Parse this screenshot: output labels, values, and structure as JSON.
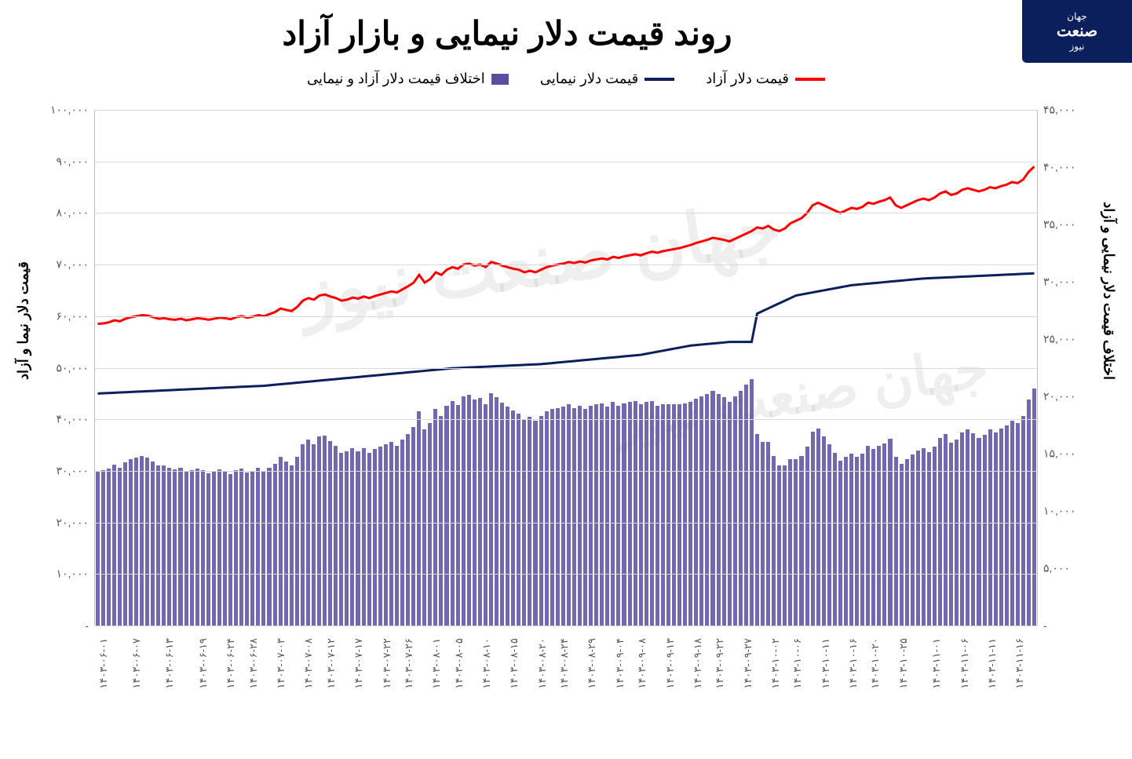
{
  "logo_top": "جهان",
  "logo_main": "صنعت",
  "logo_sub": "نیوز",
  "title": "روند قیمت دلار نیمایی و بازار آزاد",
  "legend": {
    "free": {
      "label": "قیمت دلار آزاد",
      "color": "#ff0000"
    },
    "nima": {
      "label": "قیمت دلار نیمایی",
      "color": "#0a1f5c"
    },
    "diff": {
      "label": "اختلاف قیمت دلار آزاد و نیمایی",
      "color": "#5b4ea0"
    }
  },
  "left_axis": {
    "label": "قیمت دلار نیما و آزاد",
    "min": 0,
    "max": 100000,
    "step": 10000,
    "ticks": [
      "-",
      "۱۰,۰۰۰",
      "۲۰,۰۰۰",
      "۳۰,۰۰۰",
      "۴۰,۰۰۰",
      "۵۰,۰۰۰",
      "۶۰,۰۰۰",
      "۷۰,۰۰۰",
      "۸۰,۰۰۰",
      "۹۰,۰۰۰",
      "۱۰۰,۰۰۰"
    ]
  },
  "right_axis": {
    "label": "اختلاف قیمت دلار نیمایی و آزاد",
    "min": 0,
    "max": 45000,
    "step": 5000,
    "ticks": [
      "-",
      "۵,۰۰۰",
      "۱۰,۰۰۰",
      "۱۵,۰۰۰",
      "۲۰,۰۰۰",
      "۲۵,۰۰۰",
      "۳۰,۰۰۰",
      "۳۵,۰۰۰",
      "۴۰,۰۰۰",
      "۴۵,۰۰۰"
    ]
  },
  "styling": {
    "background": "#ffffff",
    "grid_color": "#d9d9d9",
    "bar_color": "#5b4ea0",
    "bar_opacity": 0.85,
    "line_width": 3,
    "title_fontsize": 42,
    "legend_fontsize": 18,
    "tick_fontsize": 14,
    "xlabel_fontsize": 13
  },
  "watermark": "جهان صنعت نیوز",
  "series": [
    {
      "d": "۱۴۰۳-۰۶-۰۱",
      "free": 58500,
      "nima": 45000,
      "diff": 13500,
      "lab": true
    },
    {
      "d": "۱۴۰۳-۰۶-۰۲",
      "free": 58600,
      "nima": 45050,
      "diff": 13550
    },
    {
      "d": "۱۴۰۳-۰۶-۰۳",
      "free": 58800,
      "nima": 45100,
      "diff": 13700
    },
    {
      "d": "۱۴۰۳-۰۶-۰۴",
      "free": 59200,
      "nima": 45150,
      "diff": 14050
    },
    {
      "d": "۱۴۰۳-۰۶-۰۵",
      "free": 59000,
      "nima": 45200,
      "diff": 13800
    },
    {
      "d": "۱۴۰۳-۰۶-۰۶",
      "free": 59500,
      "nima": 45250,
      "diff": 14250
    },
    {
      "d": "۱۴۰۳-۰۶-۰۷",
      "free": 59800,
      "nima": 45300,
      "diff": 14500,
      "lab": true
    },
    {
      "d": "۱۴۰۳-۰۶-۰۸",
      "free": 60000,
      "nima": 45350,
      "diff": 14650
    },
    {
      "d": "۱۴۰۳-۰۶-۰۹",
      "free": 60200,
      "nima": 45400,
      "diff": 14800
    },
    {
      "d": "۱۴۰۳-۰۶-۱۰",
      "free": 60100,
      "nima": 45450,
      "diff": 14650
    },
    {
      "d": "۱۴۰۳-۰۶-۱۱",
      "free": 59800,
      "nima": 45500,
      "diff": 14300
    },
    {
      "d": "۱۴۰۳-۰۶-۱۲",
      "free": 59500,
      "nima": 45550,
      "diff": 13950
    },
    {
      "d": "۱۴۰۳-۰۶-۱۳",
      "free": 59600,
      "nima": 45600,
      "diff": 14000,
      "lab": true
    },
    {
      "d": "۱۴۰۳-۰۶-۱۴",
      "free": 59400,
      "nima": 45650,
      "diff": 13750
    },
    {
      "d": "۱۴۰۳-۰۶-۱۵",
      "free": 59300,
      "nima": 45700,
      "diff": 13600
    },
    {
      "d": "۱۴۰۳-۰۶-۱۶",
      "free": 59500,
      "nima": 45750,
      "diff": 13750
    },
    {
      "d": "۱۴۰۳-۰۶-۱۷",
      "free": 59200,
      "nima": 45800,
      "diff": 13400
    },
    {
      "d": "۱۴۰۳-۰۶-۱۸",
      "free": 59400,
      "nima": 45850,
      "diff": 13550
    },
    {
      "d": "۱۴۰۳-۰۶-۱۹",
      "free": 59600,
      "nima": 45900,
      "diff": 13700,
      "lab": true
    },
    {
      "d": "۱۴۰۳-۰۶-۲۰",
      "free": 59500,
      "nima": 45950,
      "diff": 13550
    },
    {
      "d": "۱۴۰۳-۰۶-۲۱",
      "free": 59300,
      "nima": 46000,
      "diff": 13300
    },
    {
      "d": "۱۴۰۳-۰۶-۲۲",
      "free": 59500,
      "nima": 46050,
      "diff": 13450
    },
    {
      "d": "۱۴۰۳-۰۶-۲۳",
      "free": 59700,
      "nima": 46100,
      "diff": 13600
    },
    {
      "d": "۱۴۰۳-۰۶-۲۴",
      "free": 59600,
      "nima": 46150,
      "diff": 13450,
      "lab": true
    },
    {
      "d": "۱۴۰۳-۰۶-۲۵",
      "free": 59400,
      "nima": 46200,
      "diff": 13200
    },
    {
      "d": "۱۴۰۳-۰۶-۲۶",
      "free": 59800,
      "nima": 46250,
      "diff": 13550
    },
    {
      "d": "۱۴۰۳-۰۶-۲۷",
      "free": 60000,
      "nima": 46300,
      "diff": 13700
    },
    {
      "d": "۱۴۰۳-۰۶-۲۸",
      "free": 59700,
      "nima": 46350,
      "diff": 13350,
      "lab": true
    },
    {
      "d": "۱۴۰۳-۰۶-۲۹",
      "free": 59900,
      "nima": 46400,
      "diff": 13500
    },
    {
      "d": "۱۴۰۳-۰۶-۳۰",
      "free": 60200,
      "nima": 46450,
      "diff": 13750
    },
    {
      "d": "۱۴۰۳-۰۷-۰۱",
      "free": 60000,
      "nima": 46500,
      "diff": 13500
    },
    {
      "d": "۱۴۰۳-۰۷-۰۲",
      "free": 60400,
      "nima": 46600,
      "diff": 13800
    },
    {
      "d": "۱۴۰۳-۰۷-۰۳",
      "free": 60800,
      "nima": 46700,
      "diff": 14100,
      "lab": true
    },
    {
      "d": "۱۴۰۳-۰۷-۰۴",
      "free": 61500,
      "nima": 46800,
      "diff": 14700
    },
    {
      "d": "۱۴۰۳-۰۷-۰۵",
      "free": 61200,
      "nima": 46900,
      "diff": 14300
    },
    {
      "d": "۱۴۰۳-۰۷-۰۶",
      "free": 61000,
      "nima": 47000,
      "diff": 14000
    },
    {
      "d": "۱۴۰۳-۰۷-۰۷",
      "free": 61800,
      "nima": 47100,
      "diff": 14700
    },
    {
      "d": "۱۴۰۳-۰۷-۰۸",
      "free": 63000,
      "nima": 47200,
      "diff": 15800,
      "lab": true
    },
    {
      "d": "۱۴۰۳-۰۷-۰۹",
      "free": 63500,
      "nima": 47300,
      "diff": 16200
    },
    {
      "d": "۱۴۰۳-۰۷-۱۰",
      "free": 63200,
      "nima": 47400,
      "diff": 15800
    },
    {
      "d": "۱۴۰۳-۰۷-۱۱",
      "free": 64000,
      "nima": 47500,
      "diff": 16500
    },
    {
      "d": "۱۴۰۳-۰۷-۱۲",
      "free": 64200,
      "nima": 47600,
      "diff": 16600,
      "lab": true
    },
    {
      "d": "۱۴۰۳-۰۷-۱۳",
      "free": 63800,
      "nima": 47700,
      "diff": 16100
    },
    {
      "d": "۱۴۰۳-۰۷-۱۴",
      "free": 63500,
      "nima": 47800,
      "diff": 15700
    },
    {
      "d": "۱۴۰۳-۰۷-۱۵",
      "free": 63000,
      "nima": 47900,
      "diff": 15100
    },
    {
      "d": "۱۴۰۳-۰۷-۱۶",
      "free": 63200,
      "nima": 48000,
      "diff": 15200
    },
    {
      "d": "۱۴۰۳-۰۷-۱۷",
      "free": 63600,
      "nima": 48100,
      "diff": 15500,
      "lab": true
    },
    {
      "d": "۱۴۰۳-۰۷-۱۸",
      "free": 63400,
      "nima": 48200,
      "diff": 15200
    },
    {
      "d": "۱۴۰۳-۰۷-۱۹",
      "free": 63800,
      "nima": 48300,
      "diff": 15500
    },
    {
      "d": "۱۴۰۳-۰۷-۲۰",
      "free": 63500,
      "nima": 48400,
      "diff": 15100
    },
    {
      "d": "۱۴۰۳-۰۷-۲۱",
      "free": 63900,
      "nima": 48500,
      "diff": 15400
    },
    {
      "d": "۱۴۰۳-۰۷-۲۲",
      "free": 64200,
      "nima": 48600,
      "diff": 15600,
      "lab": true
    },
    {
      "d": "۱۴۰۳-۰۷-۲۳",
      "free": 64500,
      "nima": 48700,
      "diff": 15800
    },
    {
      "d": "۱۴۰۳-۰۷-۲۴",
      "free": 64800,
      "nima": 48800,
      "diff": 16000
    },
    {
      "d": "۱۴۰۳-۰۷-۲۵",
      "free": 64600,
      "nima": 48900,
      "diff": 15700
    },
    {
      "d": "۱۴۰۳-۰۷-۲۶",
      "free": 65200,
      "nima": 49000,
      "diff": 16200,
      "lab": true
    },
    {
      "d": "۱۴۰۳-۰۷-۲۷",
      "free": 65800,
      "nima": 49100,
      "diff": 16700
    },
    {
      "d": "۱۴۰۳-۰۷-۲۸",
      "free": 66500,
      "nima": 49200,
      "diff": 17300
    },
    {
      "d": "۱۴۰۳-۰۷-۲۹",
      "free": 68000,
      "nima": 49300,
      "diff": 18700
    },
    {
      "d": "۱۴۰۳-۰۷-۳۰",
      "free": 66500,
      "nima": 49400,
      "diff": 17100
    },
    {
      "d": "۱۴۰۳-۰۸-۰۱",
      "free": 67200,
      "nima": 49500,
      "diff": 17700,
      "lab": true
    },
    {
      "d": "۱۴۰۳-۰۸-۰۲",
      "free": 68500,
      "nima": 49600,
      "diff": 18900
    },
    {
      "d": "۱۴۰۳-۰۸-۰۳",
      "free": 68000,
      "nima": 49700,
      "diff": 18300
    },
    {
      "d": "۱۴۰۳-۰۸-۰۴",
      "free": 69000,
      "nima": 49800,
      "diff": 19200
    },
    {
      "d": "۱۴۰۳-۰۸-۰۵",
      "free": 69500,
      "nima": 49900,
      "diff": 19600,
      "lab": true
    },
    {
      "d": "۱۴۰۳-۰۸-۰۶",
      "free": 69200,
      "nima": 49950,
      "diff": 19250
    },
    {
      "d": "۱۴۰۳-۰۸-۰۷",
      "free": 70000,
      "nima": 50000,
      "diff": 20000
    },
    {
      "d": "۱۴۰۳-۰۸-۰۸",
      "free": 70200,
      "nima": 50050,
      "diff": 20150
    },
    {
      "d": "۱۴۰۳-۰۸-۰۹",
      "free": 69800,
      "nima": 50100,
      "diff": 19700
    },
    {
      "d": "۱۴۰۳-۰۸-۱۰",
      "free": 70000,
      "nima": 50150,
      "diff": 19850,
      "lab": true
    },
    {
      "d": "۱۴۰۳-۰۸-۱۱",
      "free": 69500,
      "nima": 50200,
      "diff": 19300
    },
    {
      "d": "۱۴۰۳-۰۸-۱۲",
      "free": 70500,
      "nima": 50250,
      "diff": 20250
    },
    {
      "d": "۱۴۰۳-۰۸-۱۳",
      "free": 70200,
      "nima": 50300,
      "diff": 19900
    },
    {
      "d": "۱۴۰۳-۰۸-۱۴",
      "free": 69800,
      "nima": 50350,
      "diff": 19450
    },
    {
      "d": "۱۴۰۳-۰۸-۱۵",
      "free": 69500,
      "nima": 50400,
      "diff": 19100,
      "lab": true
    },
    {
      "d": "۱۴۰۳-۰۸-۱۶",
      "free": 69200,
      "nima": 50450,
      "diff": 18750
    },
    {
      "d": "۱۴۰۳-۰۸-۱۷",
      "free": 69000,
      "nima": 50500,
      "diff": 18500
    },
    {
      "d": "۱۴۰۳-۰۸-۱۸",
      "free": 68500,
      "nima": 50550,
      "diff": 17950
    },
    {
      "d": "۱۴۰۳-۰۸-۱۹",
      "free": 68800,
      "nima": 50600,
      "diff": 18200
    },
    {
      "d": "۱۴۰۳-۰۸-۲۰",
      "free": 68500,
      "nima": 50650,
      "diff": 17850,
      "lab": true
    },
    {
      "d": "۱۴۰۳-۰۸-۲۱",
      "free": 69000,
      "nima": 50700,
      "diff": 18300
    },
    {
      "d": "۱۴۰۳-۰۸-۲۲",
      "free": 69500,
      "nima": 50800,
      "diff": 18700
    },
    {
      "d": "۱۴۰۳-۰۸-۲۳",
      "free": 69800,
      "nima": 50900,
      "diff": 18900
    },
    {
      "d": "۱۴۰۳-۰۸-۲۴",
      "free": 70000,
      "nima": 51000,
      "diff": 19000,
      "lab": true
    },
    {
      "d": "۱۴۰۳-۰۸-۲۵",
      "free": 70200,
      "nima": 51100,
      "diff": 19100
    },
    {
      "d": "۱۴۰۳-۰۸-۲۶",
      "free": 70500,
      "nima": 51200,
      "diff": 19300
    },
    {
      "d": "۱۴۰۳-۰۸-۲۷",
      "free": 70300,
      "nima": 51300,
      "diff": 19000
    },
    {
      "d": "۱۴۰۳-۰۸-۲۸",
      "free": 70600,
      "nima": 51400,
      "diff": 19200
    },
    {
      "d": "۱۴۰۳-۰۸-۲۹",
      "free": 70400,
      "nima": 51500,
      "diff": 18900,
      "lab": true
    },
    {
      "d": "۱۴۰۳-۰۸-۳۰",
      "free": 70800,
      "nima": 51600,
      "diff": 19200
    },
    {
      "d": "۱۴۰۳-۰۹-۰۱",
      "free": 71000,
      "nima": 51700,
      "diff": 19300
    },
    {
      "d": "۱۴۰۳-۰۹-۰۲",
      "free": 71200,
      "nima": 51800,
      "diff": 19400
    },
    {
      "d": "۱۴۰۳-۰۹-۰۳",
      "free": 71000,
      "nima": 51900,
      "diff": 19100
    },
    {
      "d": "۱۴۰۳-۰۹-۰۴",
      "free": 71500,
      "nima": 52000,
      "diff": 19500,
      "lab": true
    },
    {
      "d": "۱۴۰۳-۰۹-۰۵",
      "free": 71300,
      "nima": 52100,
      "diff": 19200
    },
    {
      "d": "۱۴۰۳-۰۹-۰۶",
      "free": 71600,
      "nima": 52200,
      "diff": 19400
    },
    {
      "d": "۱۴۰۳-۰۹-۰۷",
      "free": 71800,
      "nima": 52300,
      "diff": 19500
    },
    {
      "d": "۱۴۰۳-۰۹-۰۸",
      "free": 72000,
      "nima": 52400,
      "diff": 19600,
      "lab": true
    },
    {
      "d": "۱۴۰۳-۰۹-۰۹",
      "free": 71800,
      "nima": 52500,
      "diff": 19300
    },
    {
      "d": "۱۴۰۳-۰۹-۱۰",
      "free": 72200,
      "nima": 52700,
      "diff": 19500
    },
    {
      "d": "۱۴۰۳-۰۹-۱۱",
      "free": 72500,
      "nima": 52900,
      "diff": 19600
    },
    {
      "d": "۱۴۰۳-۰۹-۱۲",
      "free": 72300,
      "nima": 53100,
      "diff": 19200
    },
    {
      "d": "۱۴۰۳-۰۹-۱۳",
      "free": 72600,
      "nima": 53300,
      "diff": 19300,
      "lab": true
    },
    {
      "d": "۱۴۰۳-۰۹-۱۴",
      "free": 72800,
      "nima": 53500,
      "diff": 19300
    },
    {
      "d": "۱۴۰۳-۰۹-۱۵",
      "free": 73000,
      "nima": 53700,
      "diff": 19300
    },
    {
      "d": "۱۴۰۳-۰۹-۱۶",
      "free": 73200,
      "nima": 53900,
      "diff": 19300
    },
    {
      "d": "۱۴۰۳-۰۹-۱۷",
      "free": 73500,
      "nima": 54100,
      "diff": 19400
    },
    {
      "d": "۱۴۰۳-۰۹-۱۸",
      "free": 73800,
      "nima": 54300,
      "diff": 19500,
      "lab": true
    },
    {
      "d": "۱۴۰۳-۰۹-۱۹",
      "free": 74200,
      "nima": 54400,
      "diff": 19800
    },
    {
      "d": "۱۴۰۳-۰۹-۲۰",
      "free": 74500,
      "nima": 54500,
      "diff": 20000
    },
    {
      "d": "۱۴۰۳-۰۹-۲۱",
      "free": 74800,
      "nima": 54600,
      "diff": 20200
    },
    {
      "d": "۱۴۰۳-۰۹-۲۲",
      "free": 75200,
      "nima": 54700,
      "diff": 20500,
      "lab": true
    },
    {
      "d": "۱۴۰۳-۰۹-۲۳",
      "free": 75000,
      "nima": 54800,
      "diff": 20200
    },
    {
      "d": "۱۴۰۳-۰۹-۲۴",
      "free": 74800,
      "nima": 54900,
      "diff": 19900
    },
    {
      "d": "۱۴۰۳-۰۹-۲۵",
      "free": 74500,
      "nima": 55000,
      "diff": 19500
    },
    {
      "d": "۱۴۰۳-۰۹-۲۶",
      "free": 75000,
      "nima": 55000,
      "diff": 20000
    },
    {
      "d": "۱۴۰۳-۰۹-۲۷",
      "free": 75500,
      "nima": 55000,
      "diff": 20500,
      "lab": true
    },
    {
      "d": "۱۴۰۳-۰۹-۲۸",
      "free": 76000,
      "nima": 55000,
      "diff": 21000
    },
    {
      "d": "۱۴۰۳-۰۹-۲۹",
      "free": 76500,
      "nima": 55000,
      "diff": 21500
    },
    {
      "d": "۱۴۰۳-۰۹-۳۰",
      "free": 77200,
      "nima": 60500,
      "diff": 16700
    },
    {
      "d": "۱۴۰۳-۱۰-۰۱",
      "free": 77000,
      "nima": 61000,
      "diff": 16000
    },
    {
      "d": "۱۴۰۳-۱۰-۰۲",
      "free": 77500,
      "nima": 61500,
      "diff": 16000,
      "lab": true
    },
    {
      "d": "۱۴۰۳-۱۰-۰۳",
      "free": 76800,
      "nima": 62000,
      "diff": 14800
    },
    {
      "d": "۱۴۰۳-۱۰-۰۴",
      "free": 76500,
      "nima": 62500,
      "diff": 14000
    },
    {
      "d": "۱۴۰۳-۱۰-۰۵",
      "free": 77000,
      "nima": 63000,
      "diff": 14000
    },
    {
      "d": "۱۴۰۳-۱۰-۰۶",
      "free": 78000,
      "nima": 63500,
      "diff": 14500,
      "lab": true
    },
    {
      "d": "۱۴۰۳-۱۰-۰۷",
      "free": 78500,
      "nima": 64000,
      "diff": 14500
    },
    {
      "d": "۱۴۰۳-۱۰-۰۸",
      "free": 79000,
      "nima": 64200,
      "diff": 14800
    },
    {
      "d": "۱۴۰۳-۱۰-۰۹",
      "free": 80000,
      "nima": 64400,
      "diff": 15600
    },
    {
      "d": "۱۴۰۳-۱۰-۱۰",
      "free": 81500,
      "nima": 64600,
      "diff": 16900
    },
    {
      "d": "۱۴۰۳-۱۰-۱۱",
      "free": 82000,
      "nima": 64800,
      "diff": 17200,
      "lab": true
    },
    {
      "d": "۱۴۰۳-۱۰-۱۲",
      "free": 81500,
      "nima": 65000,
      "diff": 16500
    },
    {
      "d": "۱۴۰۳-۱۰-۱۳",
      "free": 81000,
      "nima": 65200,
      "diff": 15800
    },
    {
      "d": "۱۴۰۳-۱۰-۱۴",
      "free": 80500,
      "nima": 65400,
      "diff": 15100
    },
    {
      "d": "۱۴۰۳-۱۰-۱۵",
      "free": 80000,
      "nima": 65600,
      "diff": 14400
    },
    {
      "d": "۱۴۰۳-۱۰-۱۶",
      "free": 80500,
      "nima": 65800,
      "diff": 14700,
      "lab": true
    },
    {
      "d": "۱۴۰۳-۱۰-۱۷",
      "free": 81000,
      "nima": 66000,
      "diff": 15000
    },
    {
      "d": "۱۴۰۳-۱۰-۱۸",
      "free": 80800,
      "nima": 66100,
      "diff": 14700
    },
    {
      "d": "۱۴۰۳-۱۰-۱۹",
      "free": 81200,
      "nima": 66200,
      "diff": 15000
    },
    {
      "d": "۱۴۰۳-۱۰-۲۰",
      "free": 82000,
      "nima": 66300,
      "diff": 15700,
      "lab": true
    },
    {
      "d": "۱۴۰۳-۱۰-۲۱",
      "free": 81800,
      "nima": 66400,
      "diff": 15400
    },
    {
      "d": "۱۴۰۳-۱۰-۲۲",
      "free": 82200,
      "nima": 66500,
      "diff": 15700
    },
    {
      "d": "۱۴۰۳-۱۰-۲۳",
      "free": 82500,
      "nima": 66600,
      "diff": 15900
    },
    {
      "d": "۱۴۰۳-۱۰-۲۴",
      "free": 83000,
      "nima": 66700,
      "diff": 16300
    },
    {
      "d": "۱۴۰۳-۱۰-۲۵",
      "free": 81500,
      "nima": 66800,
      "diff": 14700,
      "lab": true
    },
    {
      "d": "۱۴۰۳-۱۰-۲۶",
      "free": 81000,
      "nima": 66900,
      "diff": 14100
    },
    {
      "d": "۱۴۰۳-۱۰-۲۷",
      "free": 81500,
      "nima": 67000,
      "diff": 14500
    },
    {
      "d": "۱۴۰۳-۱۰-۲۸",
      "free": 82000,
      "nima": 67100,
      "diff": 14900
    },
    {
      "d": "۱۴۰۳-۱۰-۲۹",
      "free": 82500,
      "nima": 67200,
      "diff": 15300
    },
    {
      "d": "۱۴۰۳-۱۰-۳۰",
      "free": 82800,
      "nima": 67300,
      "diff": 15500
    },
    {
      "d": "۱۴۰۳-۱۱-۰۱",
      "free": 82500,
      "nima": 67350,
      "diff": 15150,
      "lab": true
    },
    {
      "d": "۱۴۰۳-۱۱-۰۲",
      "free": 83000,
      "nima": 67400,
      "diff": 15600
    },
    {
      "d": "۱۴۰۳-۱۱-۰۳",
      "free": 83800,
      "nima": 67450,
      "diff": 16350
    },
    {
      "d": "۱۴۰۳-۱۱-۰۴",
      "free": 84200,
      "nima": 67500,
      "diff": 16700
    },
    {
      "d": "۱۴۰۳-۱۱-۰۵",
      "free": 83500,
      "nima": 67550,
      "diff": 15950
    },
    {
      "d": "۱۴۰۳-۱۱-۰۶",
      "free": 83800,
      "nima": 67600,
      "diff": 16200,
      "lab": true
    },
    {
      "d": "۱۴۰۳-۱۱-۰۷",
      "free": 84500,
      "nima": 67650,
      "diff": 16850
    },
    {
      "d": "۱۴۰۳-۱۱-۰۸",
      "free": 84800,
      "nima": 67700,
      "diff": 17100
    },
    {
      "d": "۱۴۰۳-۱۱-۰۹",
      "free": 84500,
      "nima": 67750,
      "diff": 16750
    },
    {
      "d": "۱۴۰۳-۱۱-۱۰",
      "free": 84200,
      "nima": 67800,
      "diff": 16400
    },
    {
      "d": "۱۴۰۳-۱۱-۱۱",
      "free": 84500,
      "nima": 67850,
      "diff": 16650,
      "lab": true
    },
    {
      "d": "۱۴۰۳-۱۱-۱۲",
      "free": 85000,
      "nima": 67900,
      "diff": 17100
    },
    {
      "d": "۱۴۰۳-۱۱-۱۳",
      "free": 84800,
      "nima": 67950,
      "diff": 16850
    },
    {
      "d": "۱۴۰۳-۱۱-۱۴",
      "free": 85200,
      "nima": 68000,
      "diff": 17200
    },
    {
      "d": "۱۴۰۳-۱۱-۱۵",
      "free": 85500,
      "nima": 68050,
      "diff": 17450
    },
    {
      "d": "۱۴۰۳-۱۱-۱۶",
      "free": 86000,
      "nima": 68100,
      "diff": 17900,
      "lab": true
    },
    {
      "d": "۱۴۰۳-۱۱-۱۷",
      "free": 85800,
      "nima": 68150,
      "diff": 17650
    },
    {
      "d": "۱۴۰۳-۱۱-۱۸",
      "free": 86500,
      "nima": 68200,
      "diff": 18300
    },
    {
      "d": "۱۴۰۳-۱۱-۱۹",
      "free": 88000,
      "nima": 68250,
      "diff": 19750
    },
    {
      "d": "۱۴۰۳-۱۱-۲۰",
      "free": 89000,
      "nima": 68300,
      "diff": 20700
    }
  ]
}
